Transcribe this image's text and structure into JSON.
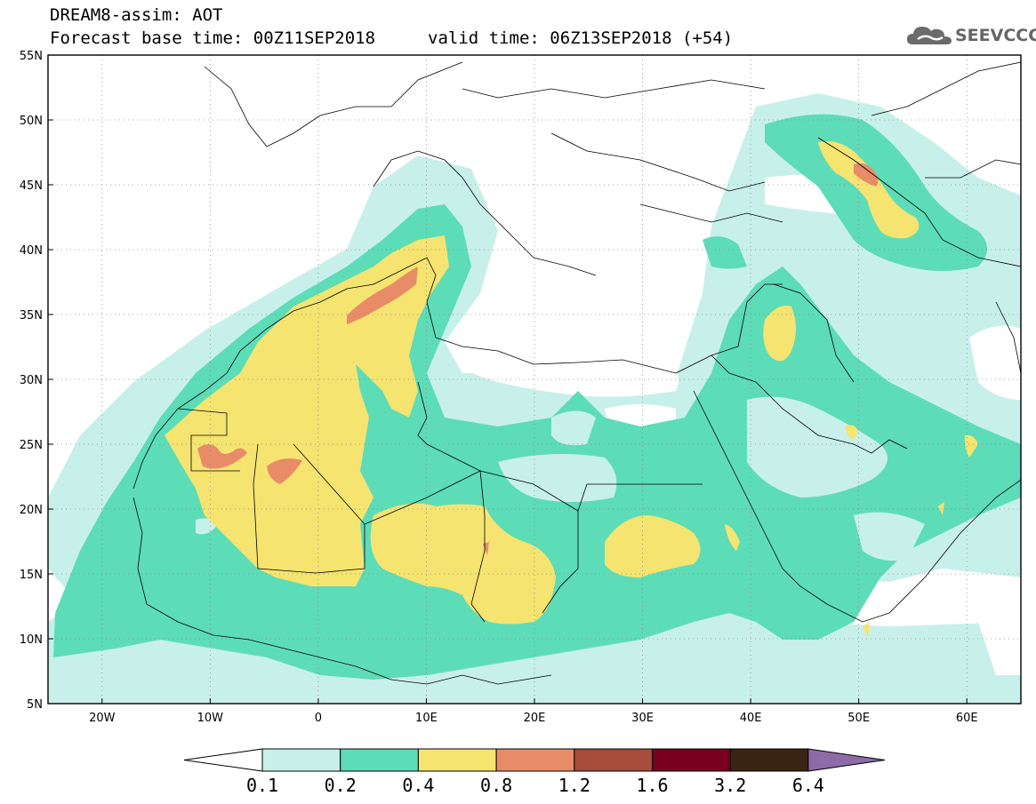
{
  "header": {
    "title_line1": "DREAM8-assim: AOT",
    "title_line2_base": "Forecast base time: 00Z11SEP2018",
    "title_line2_valid": "valid time: 06Z13SEP2018 (+54)",
    "logo_text": "SEEVCCC",
    "logo_icon": "cloud-icon"
  },
  "map": {
    "lon_range": [
      -25,
      65
    ],
    "lat_range": [
      5,
      55
    ],
    "grid": "dotted",
    "lat_ticks": [
      {
        "value": 55,
        "label": "55N"
      },
      {
        "value": 50,
        "label": "50N"
      },
      {
        "value": 45,
        "label": "45N"
      },
      {
        "value": 40,
        "label": "40N"
      },
      {
        "value": 35,
        "label": "35N"
      },
      {
        "value": 30,
        "label": "30N"
      },
      {
        "value": 25,
        "label": "25N"
      },
      {
        "value": 20,
        "label": "20N"
      },
      {
        "value": 15,
        "label": "15N"
      },
      {
        "value": 10,
        "label": "10N"
      },
      {
        "value": 5,
        "label": "5N"
      }
    ],
    "lon_ticks": [
      {
        "value": -20,
        "label": "20W"
      },
      {
        "value": -10,
        "label": "10W"
      },
      {
        "value": 0,
        "label": "0"
      },
      {
        "value": 10,
        "label": "10E"
      },
      {
        "value": 20,
        "label": "20E"
      },
      {
        "value": 30,
        "label": "30E"
      },
      {
        "value": 40,
        "label": "40E"
      },
      {
        "value": 50,
        "label": "50E"
      },
      {
        "value": 60,
        "label": "60E"
      }
    ]
  },
  "colorbar": {
    "labels": [
      "0.1",
      "0.2",
      "0.4",
      "0.8",
      "1.2",
      "1.6",
      "3.2",
      "6.4"
    ],
    "colors": [
      "#ffffff",
      "#c8f0ea",
      "#5ddcb8",
      "#f5e470",
      "#e88c68",
      "#a84c3c",
      "#7a0020",
      "#3a2414",
      "#8e6aa6"
    ]
  }
}
